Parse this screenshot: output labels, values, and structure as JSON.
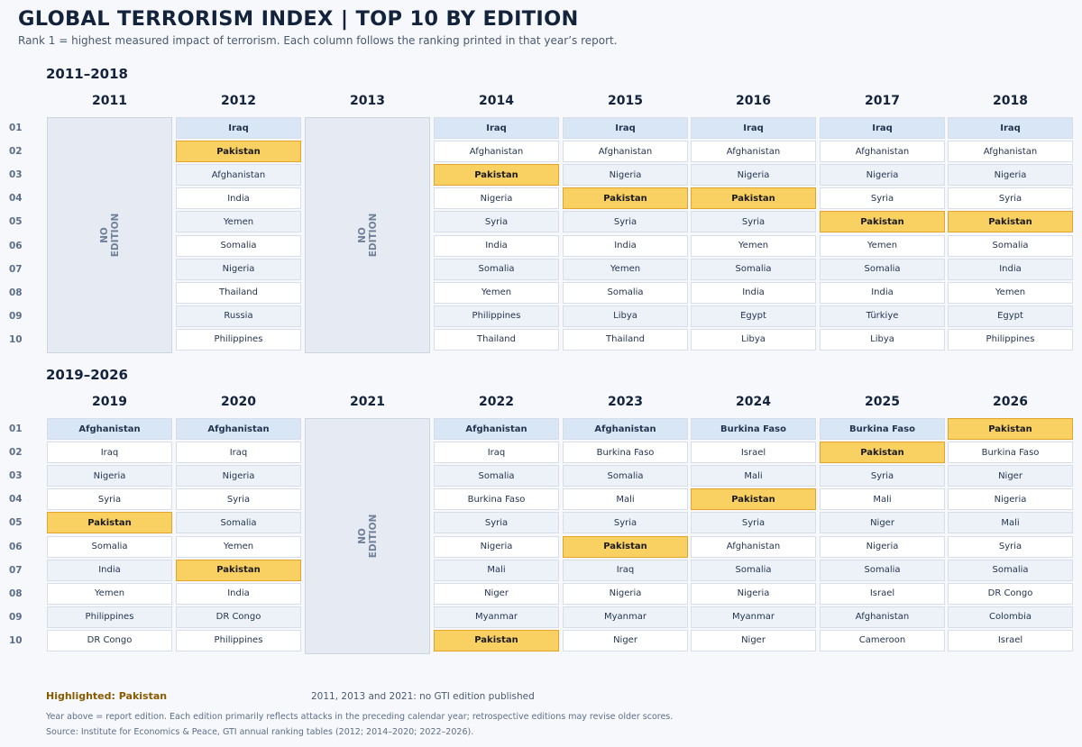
{
  "title": "GLOBAL TERRORISM INDEX  |  TOP 10 BY EDITION",
  "subtitle": "Rank 1 = highest measured impact of terrorism. Each column follows the ranking printed in that year’s report.",
  "chart_data": {
    "type": "table",
    "highlight": "Pakistan",
    "colors": {
      "highlight": "#f9d062",
      "highlight_border": "#e3a429",
      "rank1": "#d9e6f5",
      "row_odd": "#edf2f9",
      "row_even": "#ffffff",
      "no_edition": "#e6ebf3"
    },
    "ranks": [
      "01",
      "02",
      "03",
      "04",
      "05",
      "06",
      "07",
      "08",
      "09",
      "10"
    ],
    "no_edition_label": [
      "NO",
      "EDITION"
    ],
    "panels": [
      {
        "label": "2011–2018",
        "years": [
          {
            "year": "2011",
            "no_edition": true,
            "countries": []
          },
          {
            "year": "2012",
            "no_edition": false,
            "countries": [
              "Iraq",
              "Pakistan",
              "Afghanistan",
              "India",
              "Yemen",
              "Somalia",
              "Nigeria",
              "Thailand",
              "Russia",
              "Philippines"
            ]
          },
          {
            "year": "2013",
            "no_edition": true,
            "countries": []
          },
          {
            "year": "2014",
            "no_edition": false,
            "countries": [
              "Iraq",
              "Afghanistan",
              "Pakistan",
              "Nigeria",
              "Syria",
              "India",
              "Somalia",
              "Yemen",
              "Philippines",
              "Thailand"
            ]
          },
          {
            "year": "2015",
            "no_edition": false,
            "countries": [
              "Iraq",
              "Afghanistan",
              "Nigeria",
              "Pakistan",
              "Syria",
              "India",
              "Yemen",
              "Somalia",
              "Libya",
              "Thailand"
            ]
          },
          {
            "year": "2016",
            "no_edition": false,
            "countries": [
              "Iraq",
              "Afghanistan",
              "Nigeria",
              "Pakistan",
              "Syria",
              "Yemen",
              "Somalia",
              "India",
              "Egypt",
              "Libya"
            ]
          },
          {
            "year": "2017",
            "no_edition": false,
            "countries": [
              "Iraq",
              "Afghanistan",
              "Nigeria",
              "Syria",
              "Pakistan",
              "Yemen",
              "Somalia",
              "India",
              "Türkiye",
              "Libya"
            ]
          },
          {
            "year": "2018",
            "no_edition": false,
            "countries": [
              "Iraq",
              "Afghanistan",
              "Nigeria",
              "Syria",
              "Pakistan",
              "Somalia",
              "India",
              "Yemen",
              "Egypt",
              "Philippines"
            ]
          }
        ]
      },
      {
        "label": "2019–2026",
        "years": [
          {
            "year": "2019",
            "no_edition": false,
            "countries": [
              "Afghanistan",
              "Iraq",
              "Nigeria",
              "Syria",
              "Pakistan",
              "Somalia",
              "India",
              "Yemen",
              "Philippines",
              "DR Congo"
            ]
          },
          {
            "year": "2020",
            "no_edition": false,
            "countries": [
              "Afghanistan",
              "Iraq",
              "Nigeria",
              "Syria",
              "Somalia",
              "Yemen",
              "Pakistan",
              "India",
              "DR Congo",
              "Philippines"
            ]
          },
          {
            "year": "2021",
            "no_edition": true,
            "countries": []
          },
          {
            "year": "2022",
            "no_edition": false,
            "countries": [
              "Afghanistan",
              "Iraq",
              "Somalia",
              "Burkina Faso",
              "Syria",
              "Nigeria",
              "Mali",
              "Niger",
              "Myanmar",
              "Pakistan"
            ]
          },
          {
            "year": "2023",
            "no_edition": false,
            "countries": [
              "Afghanistan",
              "Burkina Faso",
              "Somalia",
              "Mali",
              "Syria",
              "Pakistan",
              "Iraq",
              "Nigeria",
              "Myanmar",
              "Niger"
            ]
          },
          {
            "year": "2024",
            "no_edition": false,
            "countries": [
              "Burkina Faso",
              "Israel",
              "Mali",
              "Pakistan",
              "Syria",
              "Afghanistan",
              "Somalia",
              "Nigeria",
              "Myanmar",
              "Niger"
            ]
          },
          {
            "year": "2025",
            "no_edition": false,
            "countries": [
              "Burkina Faso",
              "Pakistan",
              "Syria",
              "Mali",
              "Niger",
              "Nigeria",
              "Somalia",
              "Israel",
              "Afghanistan",
              "Cameroon"
            ]
          },
          {
            "year": "2026",
            "no_edition": false,
            "countries": [
              "Pakistan",
              "Burkina Faso",
              "Niger",
              "Nigeria",
              "Mali",
              "Syria",
              "Somalia",
              "DR Congo",
              "Colombia",
              "Israel"
            ]
          }
        ]
      }
    ]
  },
  "legend": {
    "highlight_label": "Highlighted: Pakistan",
    "no_edition_note": "2011, 2013 and 2021: no GTI edition published"
  },
  "notes": [
    "Year above = report edition. Each edition primarily reflects attacks in the preceding calendar year; retrospective editions may revise older scores.",
    "Source: Institute for Economics & Peace, GTI annual ranking tables (2012; 2014–2020; 2022–2026)."
  ]
}
